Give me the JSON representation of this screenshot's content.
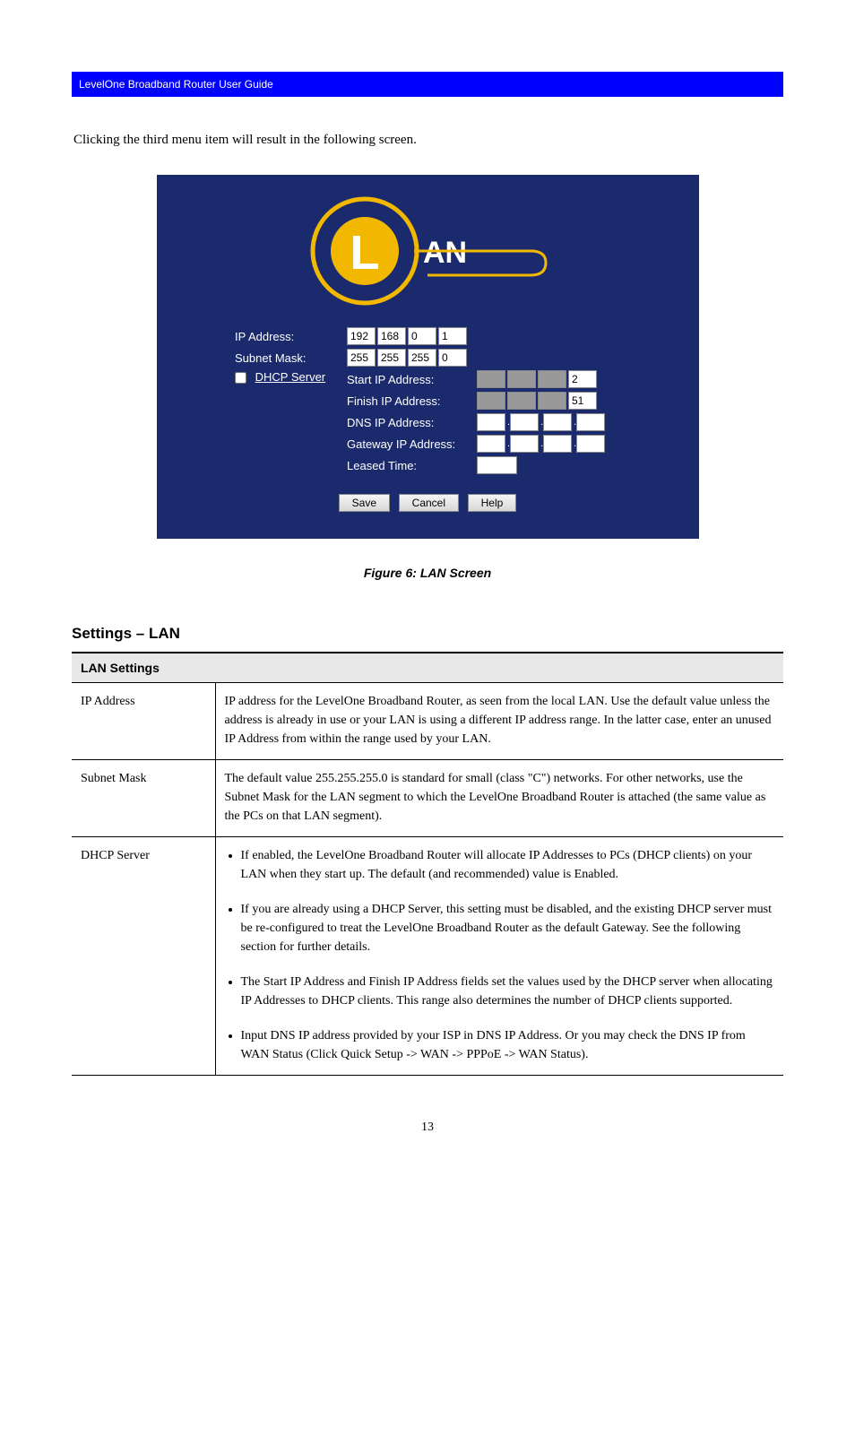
{
  "header_bar": {
    "left": "LevelOne Broadband Router User Guide",
    "right": ""
  },
  "intro": "Clicking the third menu item will result in the following screen.",
  "panel": {
    "bg": "#1a2a6c",
    "logo_text": "AN",
    "logo_accent": "#f2b800",
    "ip_address": {
      "label": "IP Address:",
      "octets": [
        "192",
        "168",
        "0",
        "1"
      ]
    },
    "subnet": {
      "label": "Subnet Mask:",
      "octets": [
        "255",
        "255",
        "255",
        "0"
      ]
    },
    "dhcp": {
      "label": "DHCP Server",
      "start": {
        "label": "Start IP Address:",
        "last": "2"
      },
      "finish": {
        "label": "Finish IP Address:",
        "last": "51"
      },
      "dns": {
        "label": "DNS IP Address:"
      },
      "gateway": {
        "label": "Gateway IP Address:"
      },
      "leased": {
        "label": "Leased Time:"
      }
    },
    "buttons": {
      "save": "Save",
      "cancel": "Cancel",
      "help": "Help"
    }
  },
  "caption": "Figure 6: LAN Screen",
  "section_title": "Settings – LAN",
  "table": {
    "header": "LAN Settings",
    "rows": [
      {
        "label": "IP Address",
        "body": "IP address for the LevelOne Broadband Router, as seen from the local LAN. Use the default value unless the address is already in use or your LAN is using a different IP address range. In the latter case, enter an unused IP Address from within the range used by your LAN."
      },
      {
        "label": "Subnet Mask",
        "body": "The default value 255.255.255.0 is standard for small (class \"C\") networks. For other networks, use the Subnet Mask for the LAN segment to which the LevelOne Broadband Router is attached (the same value as the PCs on that LAN segment)."
      },
      {
        "label": "DHCP Server",
        "bullets": [
          "If enabled, the LevelOne Broadband Router will allocate IP Addresses to PCs (DHCP clients) on your LAN when they start up. The default (and recommended) value is Enabled.",
          "If you are already using a DHCP Server, this setting must be disabled, and the existing DHCP server must be re-configured to treat the LevelOne Broadband Router as the default Gateway. See the following section for further details.",
          "The Start IP Address and Finish IP Address fields set the values used by the DHCP server when allocating IP Addresses to DHCP clients. This range also determines the number of DHCP clients supported.",
          "Input DNS IP address provided by your ISP in DNS IP Address. Or you may check the DNS IP from WAN Status (Click Quick Setup -> WAN -> PPPoE -> WAN Status)."
        ]
      }
    ]
  },
  "page_number": "13"
}
